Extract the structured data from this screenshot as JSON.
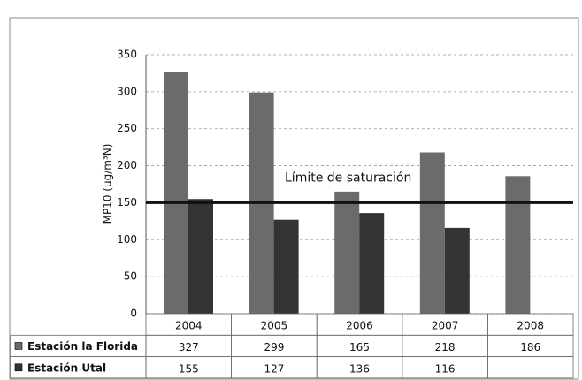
{
  "chart_data": {
    "type": "bar",
    "y_label": "MP10 (μg/m³N)",
    "categories": [
      "2004",
      "2005",
      "2006",
      "2007",
      "2008"
    ],
    "series": [
      {
        "name": "Estación la Florida",
        "color": "#6b6b6b",
        "values": [
          327,
          299,
          165,
          218,
          186
        ]
      },
      {
        "name": "Estación Utal",
        "color": "#333333",
        "values": [
          155,
          127,
          136,
          116,
          null
        ]
      }
    ],
    "reference_line": {
      "value": 150,
      "label": "Límite de saturación"
    },
    "ylim": [
      0,
      350
    ],
    "yticks": [
      0,
      50,
      100,
      150,
      200,
      250,
      300,
      350
    ],
    "grid": true
  }
}
